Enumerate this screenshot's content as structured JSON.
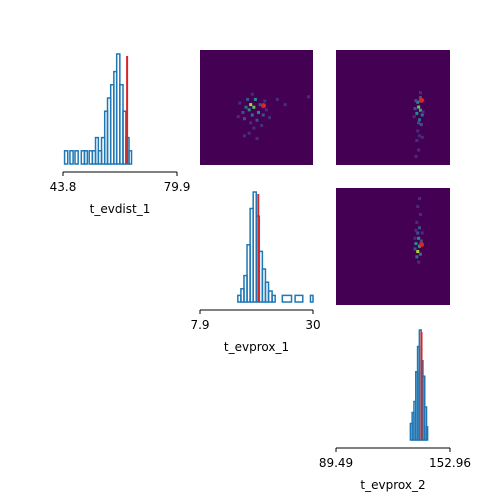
{
  "chart_data": [
    {
      "type": "histogram",
      "panel": "diag-1",
      "xlabel": "t_evdist_1",
      "xlim": [
        43.8,
        79.9
      ],
      "ticks": [
        "43.8",
        "79.9"
      ],
      "color": "#1f77b4",
      "marker": {
        "value": 64.1,
        "color": "#d62728"
      },
      "bins": [
        {
          "x0": 44.3,
          "x1": 45.3,
          "h": 0.12
        },
        {
          "x0": 46.0,
          "x1": 47.0,
          "h": 0.12
        },
        {
          "x0": 47.6,
          "x1": 48.6,
          "h": 0.12
        },
        {
          "x0": 49.6,
          "x1": 50.6,
          "h": 0.12
        },
        {
          "x0": 50.6,
          "x1": 51.5,
          "h": 0.12
        },
        {
          "x0": 52.1,
          "x1": 53.1,
          "h": 0.12
        },
        {
          "x0": 53.1,
          "x1": 54.1,
          "h": 0.12
        },
        {
          "x0": 54.1,
          "x1": 55.0,
          "h": 0.24
        },
        {
          "x0": 55.0,
          "x1": 56.0,
          "h": 0.12
        },
        {
          "x0": 56.0,
          "x1": 57.0,
          "h": 0.24
        },
        {
          "x0": 57.0,
          "x1": 57.9,
          "h": 0.48
        },
        {
          "x0": 57.9,
          "x1": 58.9,
          "h": 0.6
        },
        {
          "x0": 58.9,
          "x1": 59.9,
          "h": 0.72
        },
        {
          "x0": 59.9,
          "x1": 60.8,
          "h": 0.84
        },
        {
          "x0": 60.8,
          "x1": 61.8,
          "h": 1.0
        },
        {
          "x0": 61.8,
          "x1": 62.8,
          "h": 0.72
        },
        {
          "x0": 62.8,
          "x1": 63.7,
          "h": 0.48
        },
        {
          "x0": 63.7,
          "x1": 64.7,
          "h": 0.24
        },
        {
          "x0": 64.7,
          "x1": 65.5,
          "h": 0.12
        }
      ]
    },
    {
      "type": "histogram",
      "panel": "diag-2",
      "xlabel": "t_evprox_1",
      "xlim": [
        7.9,
        30
      ],
      "ticks": [
        "7.9",
        "30"
      ],
      "color": "#1f77b4",
      "marker": {
        "value": 19.3,
        "color": "#d62728"
      },
      "bins": [
        {
          "x0": 15.3,
          "x1": 15.9,
          "h": 0.06
        },
        {
          "x0": 15.9,
          "x1": 16.5,
          "h": 0.12
        },
        {
          "x0": 16.5,
          "x1": 17.1,
          "h": 0.24
        },
        {
          "x0": 17.1,
          "x1": 17.7,
          "h": 0.52
        },
        {
          "x0": 17.7,
          "x1": 18.3,
          "h": 0.85
        },
        {
          "x0": 18.3,
          "x1": 18.9,
          "h": 1.0
        },
        {
          "x0": 18.9,
          "x1": 19.5,
          "h": 0.78
        },
        {
          "x0": 19.5,
          "x1": 20.1,
          "h": 0.46
        },
        {
          "x0": 20.1,
          "x1": 20.7,
          "h": 0.3
        },
        {
          "x0": 20.7,
          "x1": 21.3,
          "h": 0.18
        },
        {
          "x0": 21.3,
          "x1": 22.0,
          "h": 0.1
        },
        {
          "x0": 22.0,
          "x1": 22.6,
          "h": 0.06
        },
        {
          "x0": 24.0,
          "x1": 25.8,
          "h": 0.06
        },
        {
          "x0": 26.5,
          "x1": 28.0,
          "h": 0.06
        },
        {
          "x0": 29.5,
          "x1": 30.0,
          "h": 0.06
        }
      ]
    },
    {
      "type": "histogram",
      "panel": "diag-3",
      "xlabel": "t_evprox_2",
      "xlim": [
        89.49,
        152.96
      ],
      "ticks": [
        "89.49",
        "152.96"
      ],
      "color": "#1f77b4",
      "marker": {
        "value": 137.1,
        "color": "#d62728"
      },
      "bins": [
        {
          "x0": 130.9,
          "x1": 131.9,
          "h": 0.15
        },
        {
          "x0": 131.9,
          "x1": 132.9,
          "h": 0.25
        },
        {
          "x0": 132.9,
          "x1": 133.9,
          "h": 0.35
        },
        {
          "x0": 133.9,
          "x1": 134.9,
          "h": 0.62
        },
        {
          "x0": 134.9,
          "x1": 135.9,
          "h": 0.85
        },
        {
          "x0": 135.9,
          "x1": 136.9,
          "h": 1.0
        },
        {
          "x0": 136.9,
          "x1": 137.9,
          "h": 0.72
        },
        {
          "x0": 137.9,
          "x1": 138.9,
          "h": 0.58
        },
        {
          "x0": 138.9,
          "x1": 139.9,
          "h": 0.3
        },
        {
          "x0": 139.9,
          "x1": 140.5,
          "h": 0.12
        }
      ]
    },
    {
      "type": "heatmap",
      "panel": "2d-evdist1-evprox1",
      "xlabel": "",
      "ylabel": "",
      "background": "#440154",
      "marker": {
        "x": 64.1,
        "y": 19.3,
        "color": "#d62728"
      },
      "xlim": [
        43.8,
        79.9
      ],
      "ylim": [
        7.9,
        30
      ],
      "cells": [
        {
          "x": 60.0,
          "y": 19.5,
          "v": 0.9
        },
        {
          "x": 61.0,
          "y": 19.0,
          "v": 0.7
        },
        {
          "x": 59.5,
          "y": 18.5,
          "v": 0.55
        },
        {
          "x": 62.5,
          "y": 18.0,
          "v": 0.5
        },
        {
          "x": 61.5,
          "y": 20.5,
          "v": 0.45
        },
        {
          "x": 58.5,
          "y": 19.0,
          "v": 0.4
        },
        {
          "x": 60.5,
          "y": 17.5,
          "v": 0.35
        },
        {
          "x": 63.0,
          "y": 19.5,
          "v": 0.3
        },
        {
          "x": 57.5,
          "y": 18.0,
          "v": 0.3
        },
        {
          "x": 62.0,
          "y": 16.5,
          "v": 0.25
        },
        {
          "x": 59.0,
          "y": 20.5,
          "v": 0.25
        },
        {
          "x": 64.0,
          "y": 17.5,
          "v": 0.2
        },
        {
          "x": 58.0,
          "y": 16.8,
          "v": 0.2
        },
        {
          "x": 60.0,
          "y": 16.0,
          "v": 0.18
        },
        {
          "x": 65.0,
          "y": 18.5,
          "v": 0.15
        },
        {
          "x": 56.5,
          "y": 19.8,
          "v": 0.15
        },
        {
          "x": 61.0,
          "y": 15.0,
          "v": 0.12
        },
        {
          "x": 59.5,
          "y": 14.0,
          "v": 0.1
        },
        {
          "x": 63.5,
          "y": 15.5,
          "v": 0.1
        },
        {
          "x": 68.5,
          "y": 20.5,
          "v": 0.08
        },
        {
          "x": 71.0,
          "y": 19.5,
          "v": 0.08
        },
        {
          "x": 58.0,
          "y": 13.5,
          "v": 0.08
        },
        {
          "x": 78.5,
          "y": 21.0,
          "v": 0.08
        },
        {
          "x": 62.0,
          "y": 13.0,
          "v": 0.08
        },
        {
          "x": 56.0,
          "y": 17.2,
          "v": 0.1
        },
        {
          "x": 64.5,
          "y": 20.2,
          "v": 0.12
        },
        {
          "x": 66.0,
          "y": 17.0,
          "v": 0.08
        },
        {
          "x": 60.5,
          "y": 21.5,
          "v": 0.1
        }
      ]
    },
    {
      "type": "heatmap",
      "panel": "2d-evdist1-evprox2",
      "xlabel": "",
      "ylabel": "",
      "background": "#440154",
      "marker": {
        "x": 137.1,
        "y": 64.1,
        "color": "#d62728"
      },
      "xlim": [
        89.49,
        152.96
      ],
      "ylim": [
        43.8,
        79.9
      ],
      "cells": [
        {
          "x": 135.5,
          "y": 62.0,
          "v": 0.8
        },
        {
          "x": 136.5,
          "y": 61.0,
          "v": 0.6
        },
        {
          "x": 134.5,
          "y": 60.0,
          "v": 0.5
        },
        {
          "x": 135.0,
          "y": 63.5,
          "v": 0.45
        },
        {
          "x": 137.5,
          "y": 59.5,
          "v": 0.4
        },
        {
          "x": 136.0,
          "y": 58.0,
          "v": 0.35
        },
        {
          "x": 134.0,
          "y": 64.0,
          "v": 0.3
        },
        {
          "x": 137.0,
          "y": 56.5,
          "v": 0.25
        },
        {
          "x": 135.5,
          "y": 57.0,
          "v": 0.25
        },
        {
          "x": 133.5,
          "y": 61.5,
          "v": 0.2
        },
        {
          "x": 136.5,
          "y": 65.0,
          "v": 0.2
        },
        {
          "x": 135.0,
          "y": 54.5,
          "v": 0.15
        },
        {
          "x": 136.0,
          "y": 53.0,
          "v": 0.12
        },
        {
          "x": 134.5,
          "y": 51.5,
          "v": 0.1
        },
        {
          "x": 137.5,
          "y": 52.5,
          "v": 0.1
        },
        {
          "x": 135.5,
          "y": 48.5,
          "v": 0.08
        },
        {
          "x": 134.0,
          "y": 46.5,
          "v": 0.08
        },
        {
          "x": 138.0,
          "y": 60.5,
          "v": 0.18
        },
        {
          "x": 133.0,
          "y": 59.0,
          "v": 0.12
        },
        {
          "x": 136.5,
          "y": 66.5,
          "v": 0.1
        }
      ]
    },
    {
      "type": "heatmap",
      "panel": "2d-evprox1-evprox2",
      "xlabel": "",
      "ylabel": "",
      "background": "#440154",
      "marker": {
        "x": 137.1,
        "y": 19.3,
        "color": "#d62728"
      },
      "xlim": [
        89.49,
        152.96
      ],
      "ylim": [
        7.9,
        30
      ],
      "cells": [
        {
          "x": 135.0,
          "y": 18.0,
          "v": 0.9
        },
        {
          "x": 136.0,
          "y": 19.0,
          "v": 0.65
        },
        {
          "x": 134.0,
          "y": 19.5,
          "v": 0.5
        },
        {
          "x": 135.5,
          "y": 20.5,
          "v": 0.45
        },
        {
          "x": 136.5,
          "y": 17.5,
          "v": 0.4
        },
        {
          "x": 134.5,
          "y": 17.0,
          "v": 0.35
        },
        {
          "x": 135.0,
          "y": 21.5,
          "v": 0.3
        },
        {
          "x": 137.0,
          "y": 20.0,
          "v": 0.3
        },
        {
          "x": 133.5,
          "y": 18.5,
          "v": 0.25
        },
        {
          "x": 136.0,
          "y": 22.5,
          "v": 0.2
        },
        {
          "x": 134.5,
          "y": 23.5,
          "v": 0.15
        },
        {
          "x": 135.5,
          "y": 16.0,
          "v": 0.15
        },
        {
          "x": 136.5,
          "y": 25.0,
          "v": 0.1
        },
        {
          "x": 135.0,
          "y": 26.5,
          "v": 0.08
        },
        {
          "x": 136.0,
          "y": 28.0,
          "v": 0.08
        },
        {
          "x": 134.0,
          "y": 22.0,
          "v": 0.18
        },
        {
          "x": 137.5,
          "y": 21.5,
          "v": 0.12
        },
        {
          "x": 133.5,
          "y": 20.5,
          "v": 0.1
        }
      ]
    }
  ]
}
